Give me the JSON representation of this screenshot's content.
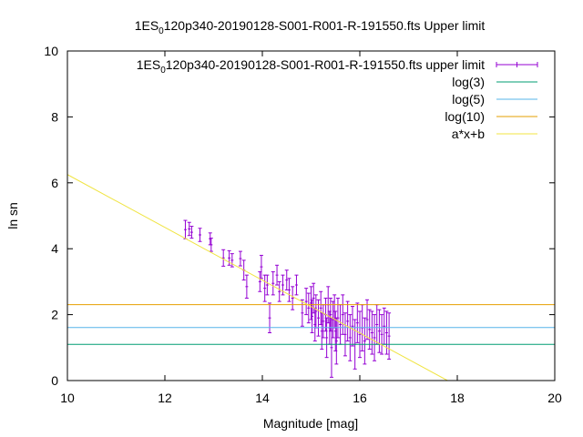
{
  "chart_data": {
    "type": "scatter",
    "title": "1ES_0120p340-20190128-S001-R001-R-191550.fts Upper limit",
    "xlabel": "Magnitude [mag]",
    "ylabel": "ln sn",
    "xlim": [
      10,
      20
    ],
    "ylim": [
      0,
      10
    ],
    "xticks": [
      "10",
      "12",
      "14",
      "16",
      "18",
      "20"
    ],
    "yticks": [
      "0",
      "2",
      "4",
      "6",
      "8",
      "10"
    ],
    "grid": false,
    "legend_position": "top-right",
    "series": [
      {
        "name": "1ES_0120p340-20190128-S001-R001-R-191550.fts upper limit",
        "kind": "errorbars",
        "color": "#9400d3",
        "points": [
          [
            12.42,
            4.58,
            0.28
          ],
          [
            12.5,
            4.6,
            0.2
          ],
          [
            12.55,
            4.5,
            0.18
          ],
          [
            12.72,
            4.42,
            0.2
          ],
          [
            12.93,
            4.3,
            0.18
          ],
          [
            12.95,
            4.12,
            0.2
          ],
          [
            13.2,
            3.72,
            0.25
          ],
          [
            13.32,
            3.72,
            0.22
          ],
          [
            13.38,
            3.65,
            0.2
          ],
          [
            13.55,
            3.7,
            0.22
          ],
          [
            13.62,
            3.35,
            0.3
          ],
          [
            13.68,
            2.85,
            0.35
          ],
          [
            13.95,
            3.0,
            0.3
          ],
          [
            13.98,
            3.45,
            0.35
          ],
          [
            14.05,
            2.8,
            0.4
          ],
          [
            14.1,
            2.9,
            0.3
          ],
          [
            14.15,
            1.9,
            0.45
          ],
          [
            14.22,
            2.95,
            0.35
          ],
          [
            14.3,
            3.2,
            0.3
          ],
          [
            14.35,
            2.7,
            0.3
          ],
          [
            14.42,
            2.9,
            0.3
          ],
          [
            14.5,
            3.05,
            0.3
          ],
          [
            14.55,
            2.75,
            0.35
          ],
          [
            14.62,
            2.5,
            0.35
          ],
          [
            14.7,
            2.9,
            0.3
          ],
          [
            14.82,
            2.05,
            0.4
          ],
          [
            14.9,
            2.4,
            0.4
          ],
          [
            14.95,
            2.2,
            0.45
          ],
          [
            15.0,
            2.35,
            0.5
          ],
          [
            15.02,
            1.95,
            0.5
          ],
          [
            15.05,
            2.5,
            0.45
          ],
          [
            15.08,
            1.7,
            0.5
          ],
          [
            15.1,
            2.1,
            0.5
          ],
          [
            15.15,
            1.9,
            0.55
          ],
          [
            15.2,
            2.2,
            0.5
          ],
          [
            15.22,
            1.5,
            0.55
          ],
          [
            15.25,
            1.8,
            0.5
          ],
          [
            15.3,
            2.0,
            0.5
          ],
          [
            15.32,
            1.3,
            0.6
          ],
          [
            15.35,
            2.3,
            0.55
          ],
          [
            15.38,
            1.6,
            0.5
          ],
          [
            15.4,
            2.0,
            0.5
          ],
          [
            15.42,
            1.0,
            0.9
          ],
          [
            15.45,
            1.85,
            0.55
          ],
          [
            15.48,
            2.1,
            0.5
          ],
          [
            15.5,
            1.5,
            0.6
          ],
          [
            15.52,
            1.2,
            0.7
          ],
          [
            15.55,
            1.9,
            0.6
          ],
          [
            15.6,
            1.7,
            0.6
          ],
          [
            15.65,
            2.0,
            0.6
          ],
          [
            15.7,
            1.4,
            0.65
          ],
          [
            15.75,
            1.8,
            0.6
          ],
          [
            15.8,
            1.3,
            0.7
          ],
          [
            15.85,
            1.65,
            0.6
          ],
          [
            15.9,
            1.1,
            0.75
          ],
          [
            15.95,
            1.75,
            0.6
          ],
          [
            16.0,
            1.4,
            0.7
          ],
          [
            16.05,
            1.6,
            0.7
          ],
          [
            16.1,
            1.2,
            0.7
          ],
          [
            16.15,
            1.85,
            0.6
          ],
          [
            16.2,
            1.55,
            0.6
          ],
          [
            16.25,
            1.45,
            0.65
          ],
          [
            16.3,
            1.3,
            0.7
          ],
          [
            16.35,
            1.7,
            0.6
          ],
          [
            16.4,
            1.5,
            0.65
          ],
          [
            16.45,
            1.4,
            0.6
          ],
          [
            16.5,
            1.65,
            0.55
          ],
          [
            16.55,
            1.45,
            0.65
          ],
          [
            16.6,
            1.35,
            0.7
          ]
        ]
      },
      {
        "name": "log(3)",
        "kind": "hline",
        "value": 1.0986,
        "color": "#009e73"
      },
      {
        "name": "log(5)",
        "kind": "hline",
        "value": 1.6094,
        "color": "#56b4e9"
      },
      {
        "name": "log(10)",
        "kind": "hline",
        "value": 2.3026,
        "color": "#e69f00"
      },
      {
        "name": "a*x+b",
        "kind": "line",
        "color": "#f0e442",
        "x": [
          10,
          17.8
        ],
        "y": [
          6.25,
          0
        ]
      }
    ]
  }
}
